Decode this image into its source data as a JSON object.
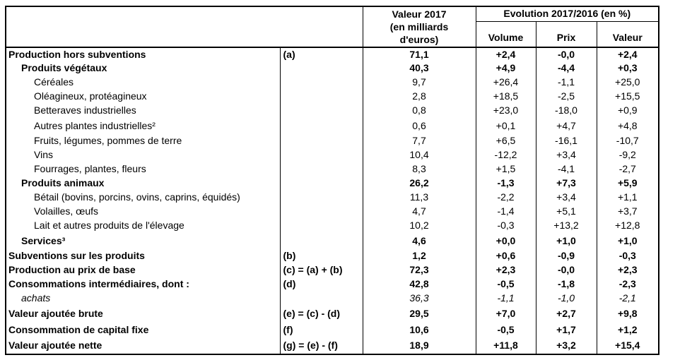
{
  "table": {
    "header": {
      "valeur2017_line1": "Valeur 2017",
      "valeur2017_line2": "(en milliards",
      "valeur2017_line3": "d'euros)",
      "evolution_title": "Evolution 2017/2016 (en %)",
      "sub_columns": [
        "Volume",
        "Prix",
        "Valeur"
      ]
    },
    "rows": [
      {
        "label": "Production hors subventions",
        "note": "(a)",
        "v2017": "71,1",
        "volume": "+2,4",
        "prix": "-0,0",
        "valeur": "+2,4",
        "style": "bold",
        "indent": 0,
        "tall": false
      },
      {
        "label": "Produits végétaux",
        "note": "",
        "v2017": "40,3",
        "volume": "+4,9",
        "prix": "-4,4",
        "valeur": "+0,3",
        "style": "bold",
        "indent": 1,
        "tall": false
      },
      {
        "label": "Céréales",
        "note": "",
        "v2017": "9,7",
        "volume": "+26,4",
        "prix": "-1,1",
        "valeur": "+25,0",
        "style": "normal",
        "indent": 2,
        "tall": false
      },
      {
        "label": "Oléagineux, protéagineux",
        "note": "",
        "v2017": "2,8",
        "volume": "+18,5",
        "prix": "-2,5",
        "valeur": "+15,5",
        "style": "normal",
        "indent": 2,
        "tall": false
      },
      {
        "label": "Betteraves industrielles",
        "note": "",
        "v2017": "0,8",
        "volume": "+23,0",
        "prix": "-18,0",
        "valeur": "+0,9",
        "style": "normal",
        "indent": 2,
        "tall": false
      },
      {
        "label": "Autres plantes industrielles²",
        "note": "",
        "v2017": "0,6",
        "volume": "+0,1",
        "prix": "+4,7",
        "valeur": "+4,8",
        "style": "normal",
        "indent": 2,
        "tall": true
      },
      {
        "label": "Fruits, légumes, pommes de terre",
        "note": "",
        "v2017": "7,7",
        "volume": "+6,5",
        "prix": "-16,1",
        "valeur": "-10,7",
        "style": "normal",
        "indent": 2,
        "tall": false
      },
      {
        "label": "Vins",
        "note": "",
        "v2017": "10,4",
        "volume": "-12,2",
        "prix": "+3,4",
        "valeur": "-9,2",
        "style": "normal",
        "indent": 2,
        "tall": false
      },
      {
        "label": "Fourrages, plantes, fleurs",
        "note": "",
        "v2017": "8,3",
        "volume": "+1,5",
        "prix": "-4,1",
        "valeur": "-2,7",
        "style": "normal",
        "indent": 2,
        "tall": false
      },
      {
        "label": "Produits animaux",
        "note": "",
        "v2017": "26,2",
        "volume": "-1,3",
        "prix": "+7,3",
        "valeur": "+5,9",
        "style": "bold",
        "indent": 1,
        "tall": false
      },
      {
        "label": "Bétail (bovins, porcins, ovins, caprins, équidés)",
        "note": "",
        "v2017": "11,3",
        "volume": "-2,2",
        "prix": "+3,4",
        "valeur": "+1,1",
        "style": "normal",
        "indent": 2,
        "tall": false
      },
      {
        "label": "Volailles, œufs",
        "note": "",
        "v2017": "4,7",
        "volume": "-1,4",
        "prix": "+5,1",
        "valeur": "+3,7",
        "style": "normal",
        "indent": 2,
        "tall": false
      },
      {
        "label": "Lait et autres produits de l'élevage",
        "note": "",
        "v2017": "10,2",
        "volume": "-0,3",
        "prix": "+13,2",
        "valeur": "+12,8",
        "style": "normal",
        "indent": 2,
        "tall": false
      },
      {
        "label": "Services³",
        "note": "",
        "v2017": "4,6",
        "volume": "+0,0",
        "prix": "+1,0",
        "valeur": "+1,0",
        "style": "bold",
        "indent": 1,
        "tall": true
      },
      {
        "label": "Subventions sur les produits",
        "note": "(b)",
        "v2017": "1,2",
        "volume": "+0,6",
        "prix": "-0,9",
        "valeur": "-0,3",
        "style": "bold",
        "indent": 0,
        "tall": false
      },
      {
        "label": "Production au prix de base",
        "note": "(c) = (a) + (b)",
        "v2017": "72,3",
        "volume": "+2,3",
        "prix": "-0,0",
        "valeur": "+2,3",
        "style": "bold",
        "indent": 0,
        "tall": false
      },
      {
        "label": "Consommations intermédiaires, dont :",
        "note": "(d)",
        "v2017": "42,8",
        "volume": "-0,5",
        "prix": "-1,8",
        "valeur": "-2,3",
        "style": "bold",
        "indent": 0,
        "tall": false
      },
      {
        "label": "achats",
        "note": "",
        "v2017": "36,3",
        "volume": "-1,1",
        "prix": "-1,0",
        "valeur": "-2,1",
        "style": "italic",
        "indent": 1,
        "tall": false
      },
      {
        "label": "Valeur ajoutée brute",
        "note": "(e) = (c) - (d)",
        "v2017": "29,5",
        "volume": "+7,0",
        "prix": "+2,7",
        "valeur": "+9,8",
        "style": "bold",
        "indent": 0,
        "tall": true
      },
      {
        "label": "Consommation de capital fixe",
        "note": "(f)",
        "v2017": "10,6",
        "volume": "-0,5",
        "prix": "+1,7",
        "valeur": "+1,2",
        "style": "bold",
        "indent": 0,
        "tall": true
      },
      {
        "label": "Valeur ajoutée nette",
        "note": "(g) = (e) - (f)",
        "v2017": "18,9",
        "volume": "+11,8",
        "prix": "+3,2",
        "valeur": "+15,4",
        "style": "bold",
        "indent": 0,
        "tall": true
      }
    ]
  }
}
